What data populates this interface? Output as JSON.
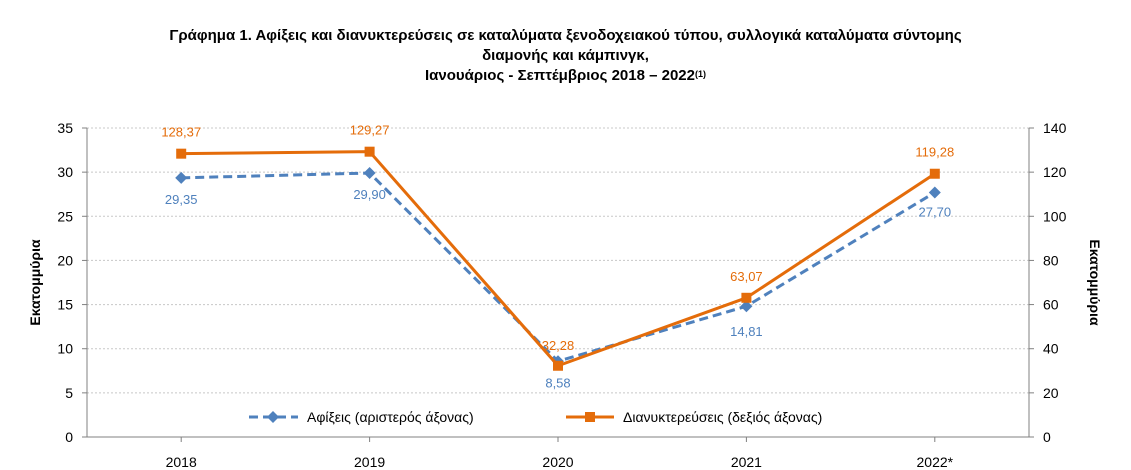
{
  "title": {
    "line1": "Γράφημα 1. Αφίξεις και διανυκτερεύσεις σε καταλύματα ξενοδοχειακού τύπου, συλλογικά καταλύματα σύντομης",
    "line2": "διαμονής και κάμπινγκ,",
    "line3": "Ιανουάριος - Σεπτέμβριος 2018 –  2022",
    "line3_sup": "(1)"
  },
  "chart_data": {
    "type": "line",
    "categories": [
      "2018",
      "2019",
      "2020",
      "2021",
      "2022*"
    ],
    "ylabel_left": "Εκατομμύρια",
    "ylabel_right": "Εκατομμύρια",
    "ylim_left": [
      0,
      35
    ],
    "ylim_right": [
      0,
      140
    ],
    "yticks_left": [
      0,
      5,
      10,
      15,
      20,
      25,
      30,
      35
    ],
    "yticks_right": [
      0,
      20,
      40,
      60,
      80,
      100,
      120,
      140
    ],
    "grid": true,
    "legend_position": "bottom-center",
    "series": [
      {
        "name": "Αφίξεις (αριστερός άξονας)",
        "axis": "left",
        "values": [
          29.35,
          29.9,
          8.58,
          14.81,
          27.7
        ],
        "labels": [
          "29,35",
          "29,90",
          "8,58",
          "14,81",
          "27,70"
        ],
        "color": "#4f81bd",
        "style": "dashed",
        "marker": "diamond"
      },
      {
        "name": "Διανυκτερεύσεις (δεξιός άξονας)",
        "axis": "right",
        "values": [
          128.37,
          129.27,
          32.28,
          63.07,
          119.28
        ],
        "labels": [
          "128,37",
          "129,27",
          "32,28",
          "63,07",
          "119,28"
        ],
        "color": "#e46c0a",
        "style": "solid",
        "marker": "square"
      }
    ]
  }
}
